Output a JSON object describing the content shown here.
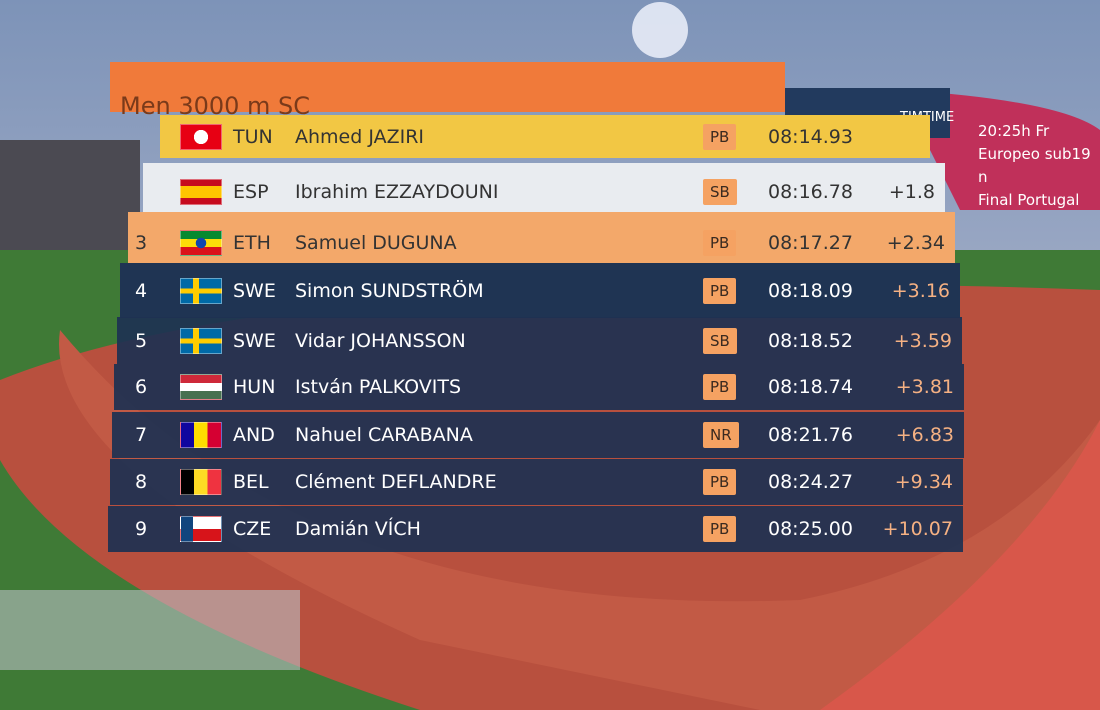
{
  "header": {
    "title": "Men 3000 m SC",
    "brand": "TIMTIME",
    "info": [
      "20:25h Fr",
      "Europeo sub19 n",
      "Final Portugal"
    ]
  },
  "results": [
    {
      "country": "TUN",
      "name": "Ahmed JAZIRI",
      "record": "PB",
      "time": "08:14.93"
    },
    {
      "country": "ESP",
      "name": "Ibrahim EZZAYDOUNI",
      "record": "SB",
      "time": "08:16.78",
      "gap": "+1.8"
    },
    {
      "rank": 3,
      "country": "ETH",
      "name": "Samuel DUGUNA",
      "record": "PB",
      "time": "08:17.27",
      "gap": "+2.34"
    },
    {
      "rank": 4,
      "country": "SWE",
      "name": "Simon SUNDSTRÖM",
      "record": "PB",
      "time": "08:18.09",
      "gap": "+3.16"
    },
    {
      "rank": 5,
      "country": "SWE",
      "name": "Vidar JOHANSSON",
      "record": "SB",
      "time": "08:18.52",
      "gap": "+3.59"
    },
    {
      "rank": 6,
      "country": "HUN",
      "name": "István PALKOVITS",
      "record": "PB",
      "time": "08:18.74",
      "gap": "+3.81"
    },
    {
      "rank": 7,
      "country": "AND",
      "name": "Nahuel CARABANA",
      "record": "NR",
      "time": "08:21.76",
      "gap": "+6.83"
    },
    {
      "rank": 8,
      "country": "BEL",
      "name": "Clément DEFLANDRE",
      "record": "PB",
      "time": "08:24.27",
      "gap": "+9.34"
    },
    {
      "rank": 9,
      "country": "CZE",
      "name": "Damián VÍCH",
      "record": "PB",
      "time": "08:25.00",
      "gap": "+10.07"
    }
  ]
}
